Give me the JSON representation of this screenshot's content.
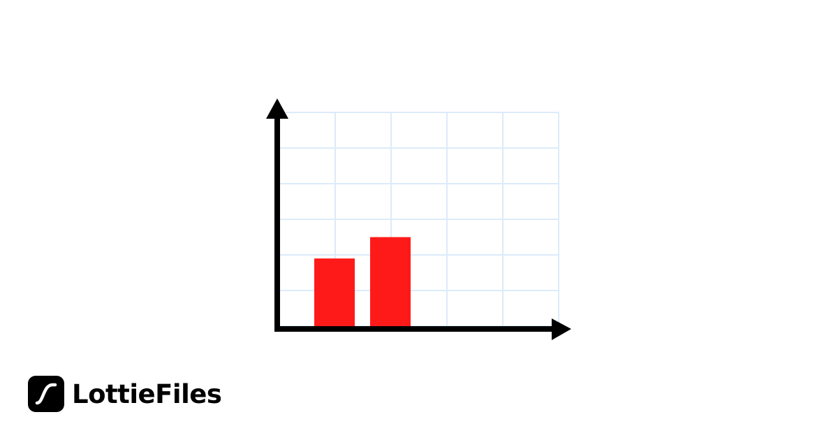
{
  "chart_data": {
    "type": "bar",
    "categories": [
      "",
      ""
    ],
    "values": [
      1.9,
      2.5
    ],
    "title": "",
    "xlabel": "",
    "ylabel": "",
    "ylim": [
      0,
      6
    ],
    "x_grid_columns": 5,
    "grid": true,
    "bar_color": "#ff1a1a",
    "grid_color": "#dcebfa",
    "axis_color": "#000000"
  },
  "brand": {
    "name": "LottieFiles",
    "logo_icon": "lottie-curve-icon"
  }
}
